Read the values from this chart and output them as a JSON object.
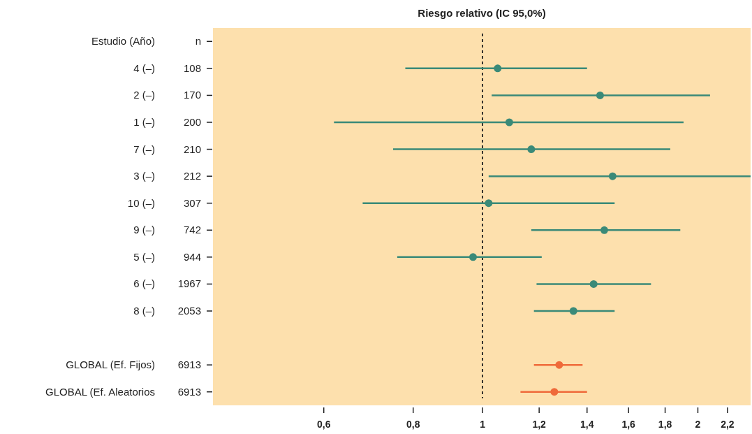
{
  "chart_data": {
    "type": "scatter",
    "orientation": "horizontal",
    "title": "Riesgo relativo (IC 95,0%)",
    "log": "x",
    "marker": "circle",
    "grid": false,
    "categories": [
      "Estudio (Año)",
      "4 (–)",
      "2 (–)",
      "1 (–)",
      "7 (–)",
      "3 (–)",
      "10 (–)",
      "9 (–)",
      "5 (–)",
      "6 (–)",
      "8 (–)",
      null,
      "GLOBAL (Ef. Fijos)",
      "GLOBAL (Ef. Aleatorios"
    ],
    "annotations": [
      "n",
      "108",
      "170",
      "200",
      "210",
      "212",
      "307",
      "742",
      "944",
      "1967",
      "2053",
      "6913",
      "6913"
    ],
    "series": [
      {
        "color": "#3a8a78",
        "values": [
          null,
          1.05,
          1.46,
          1.09,
          1.17,
          1.52,
          1.02,
          1.48,
          0.97,
          1.43,
          1.34,
          null,
          null,
          null
        ],
        "errors": [
          null,
          [
            0.78,
            1.4
          ],
          [
            1.03,
            2.08
          ],
          [
            0.62,
            1.91
          ],
          [
            0.75,
            1.83
          ],
          [
            1.02,
            2.37
          ],
          [
            0.68,
            1.53
          ],
          [
            1.17,
            1.89
          ],
          [
            0.76,
            1.21
          ],
          [
            1.19,
            1.72
          ],
          [
            1.18,
            1.53
          ],
          null,
          null,
          null
        ]
      },
      {
        "color": "#ef6a3a",
        "values": [
          null,
          null,
          null,
          null,
          null,
          null,
          null,
          null,
          null,
          null,
          null,
          null,
          1.28,
          1.26
        ],
        "errors": [
          null,
          null,
          null,
          null,
          null,
          null,
          null,
          null,
          null,
          null,
          null,
          null,
          [
            1.18,
            1.38
          ],
          [
            1.13,
            1.4
          ]
        ]
      }
    ],
    "ref_lines": [
      {
        "axis": "x",
        "value": 1,
        "color": "#222222",
        "line_style": "dashed"
      }
    ],
    "xlim": [
      0.42,
      2.37
    ],
    "xticks": [
      {
        "value": 0.6,
        "label": "0,6"
      },
      {
        "value": 0.8,
        "label": "0,8"
      },
      1,
      {
        "value": 1.2,
        "label": "1,2"
      },
      {
        "value": 1.4,
        "label": "1,4"
      },
      {
        "value": 1.6,
        "label": "1,6"
      },
      {
        "value": 1.8,
        "label": "1,8"
      },
      2,
      {
        "value": 2.2,
        "label": "2,2"
      }
    ]
  }
}
